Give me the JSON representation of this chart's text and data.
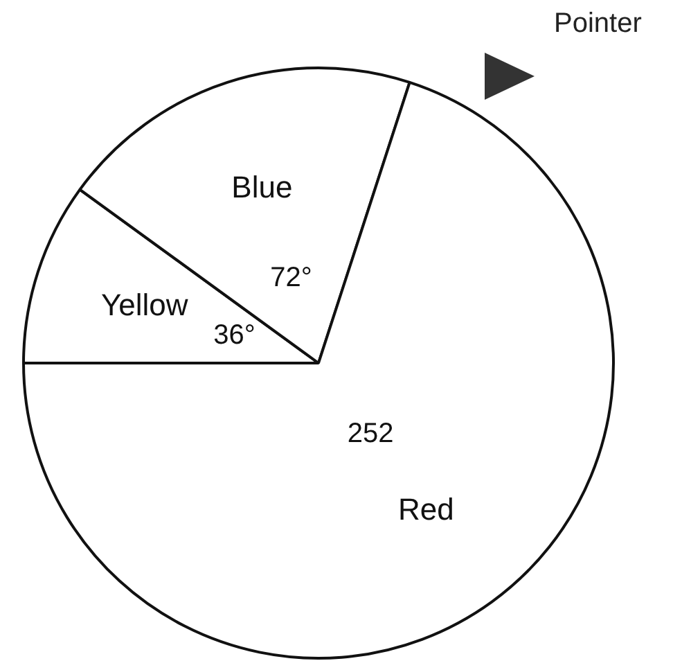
{
  "chart_data": {
    "type": "pie",
    "categories": [
      "Yellow",
      "Blue",
      "Red"
    ],
    "values": [
      36,
      72,
      252
    ],
    "colors": [
      "#ffffff",
      "#ffffff",
      "#ffffff"
    ],
    "value_labels": [
      "36°",
      "72°",
      "252"
    ],
    "annotations": [
      "Pointer"
    ],
    "legend": false
  }
}
